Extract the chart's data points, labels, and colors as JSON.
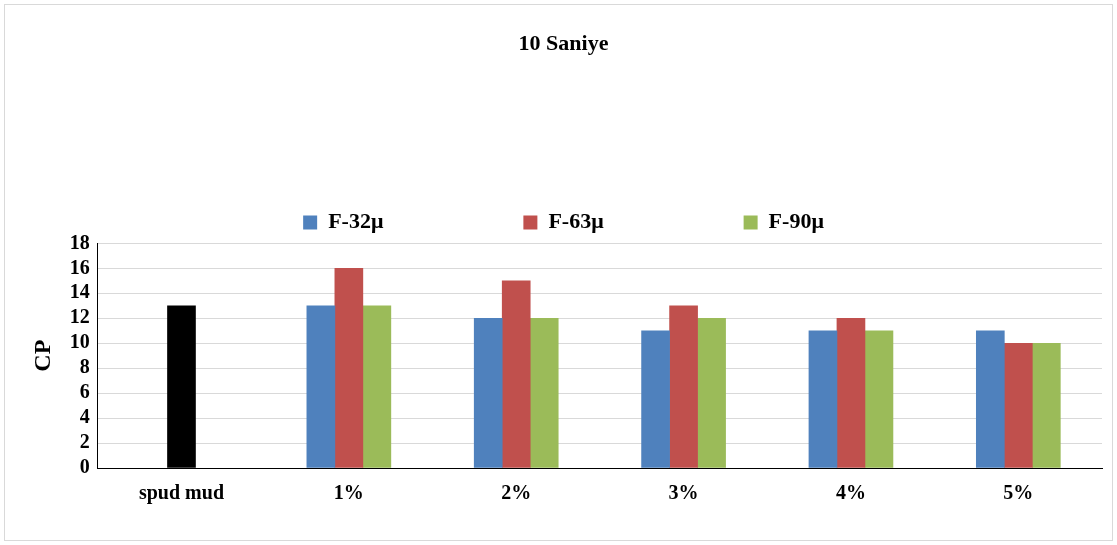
{
  "chart_data": {
    "type": "bar",
    "title": "10 Saniye",
    "ylabel": "CP",
    "categories": [
      "spud mud",
      "1%",
      "2%",
      "3%",
      "4%",
      "5%"
    ],
    "series": [
      {
        "color": "#000000",
        "values": [
          13,
          null,
          null,
          null,
          null,
          null
        ]
      },
      {
        "name": "F-32μ",
        "color": "#4f81bd",
        "values": [
          null,
          13,
          12,
          11,
          11,
          11
        ]
      },
      {
        "name": "F-63μ",
        "color": "#c0504d",
        "values": [
          null,
          16,
          15,
          13,
          12,
          10
        ]
      },
      {
        "name": "F-90μ",
        "color": "#9bbb59",
        "values": [
          null,
          13,
          12,
          12,
          11,
          10
        ]
      }
    ],
    "ylim": [
      0,
      18
    ],
    "yticks": [
      0,
      2,
      4,
      6,
      8,
      10,
      12,
      14,
      16,
      18
    ],
    "grid": "y",
    "legend": "top"
  }
}
